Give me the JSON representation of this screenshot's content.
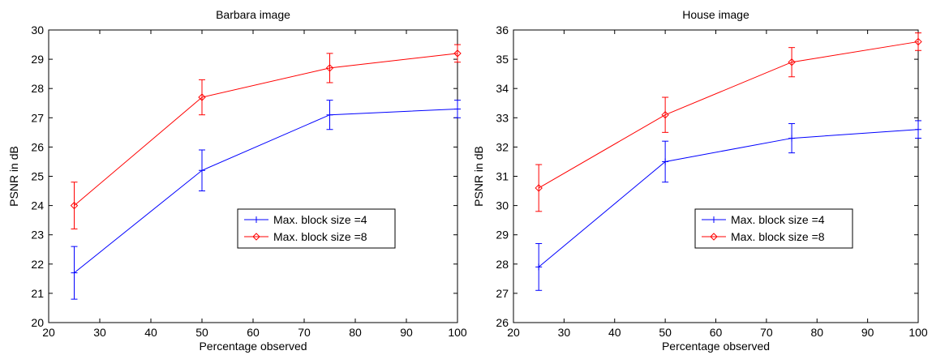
{
  "chart_data": [
    {
      "type": "line",
      "title": "Barbara image",
      "xlabel": "Percentage observed",
      "ylabel": "PSNR in dB",
      "xlim": [
        20,
        100
      ],
      "ylim": [
        20,
        30
      ],
      "xticks": [
        20,
        30,
        40,
        50,
        60,
        70,
        80,
        90,
        100
      ],
      "yticks": [
        20,
        21,
        22,
        23,
        24,
        25,
        26,
        27,
        28,
        29,
        30
      ],
      "grid": false,
      "legend_position": "center-right",
      "x": [
        25,
        50,
        75,
        100
      ],
      "series": [
        {
          "name": "Max. block size =4",
          "color": "#0000ff",
          "marker": "plus",
          "values": [
            21.7,
            25.2,
            27.1,
            27.3
          ],
          "error": [
            0.9,
            0.7,
            0.5,
            0.3
          ]
        },
        {
          "name": "Max. block size =8",
          "color": "#ff0000",
          "marker": "diamond",
          "values": [
            24.0,
            27.7,
            28.7,
            29.2
          ],
          "error": [
            0.8,
            0.6,
            0.5,
            0.3
          ]
        }
      ]
    },
    {
      "type": "line",
      "title": "House image",
      "xlabel": "Percentage observed",
      "ylabel": "PSNR in dB",
      "xlim": [
        20,
        100
      ],
      "ylim": [
        26,
        36
      ],
      "xticks": [
        20,
        30,
        40,
        50,
        60,
        70,
        80,
        90,
        100
      ],
      "yticks": [
        26,
        27,
        28,
        29,
        30,
        31,
        32,
        33,
        34,
        35,
        36
      ],
      "grid": false,
      "legend_position": "center-right",
      "x": [
        25,
        50,
        75,
        100
      ],
      "series": [
        {
          "name": "Max. block size =4",
          "color": "#0000ff",
          "marker": "plus",
          "values": [
            27.9,
            31.5,
            32.3,
            32.6
          ],
          "error": [
            0.8,
            0.7,
            0.5,
            0.3
          ]
        },
        {
          "name": "Max. block size =8",
          "color": "#ff0000",
          "marker": "diamond",
          "values": [
            30.6,
            33.1,
            34.9,
            35.6
          ],
          "error": [
            0.8,
            0.6,
            0.5,
            0.3
          ]
        }
      ]
    }
  ]
}
